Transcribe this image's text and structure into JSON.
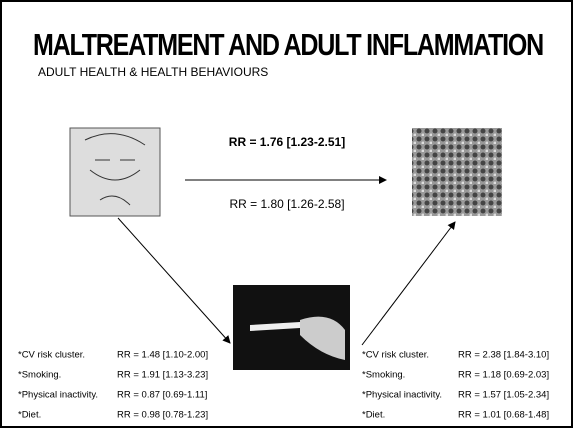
{
  "header": {
    "title": "MALTREATMENT AND ADULT INFLAMMATION",
    "subtitle": "ADULT HEALTH & HEALTH BEHAVIOURS"
  },
  "direct_path": {
    "upper_label": "RR = 1.76  [1.23-2.51]",
    "lower_label": "RR = 1.80  [1.26-2.58]"
  },
  "left_list": [
    {
      "label": "*CV risk cluster.",
      "value": "RR = 1.48 [1.10-2.00]"
    },
    {
      "label": "*Smoking.",
      "value": "RR = 1.91 [1.13-3.23]"
    },
    {
      "label": "*Physical inactivity.",
      "value": "RR = 0.87 [0.69-1.11]"
    },
    {
      "label": "*Diet.",
      "value": "RR = 0.98 [0.78-1.23]"
    }
  ],
  "right_list": [
    {
      "label": "*CV risk cluster.",
      "value": "RR = 2.38 [1.84-3.10]"
    },
    {
      "label": "*Smoking.",
      "value": "RR = 1.18 [0.69-2.03]"
    },
    {
      "label": "*Physical inactivity.",
      "value": "RR = 1.57 [1.05-2.34]"
    },
    {
      "label": "*Diet.",
      "value": "RR = 1.01 [0.68-1.48]"
    }
  ]
}
